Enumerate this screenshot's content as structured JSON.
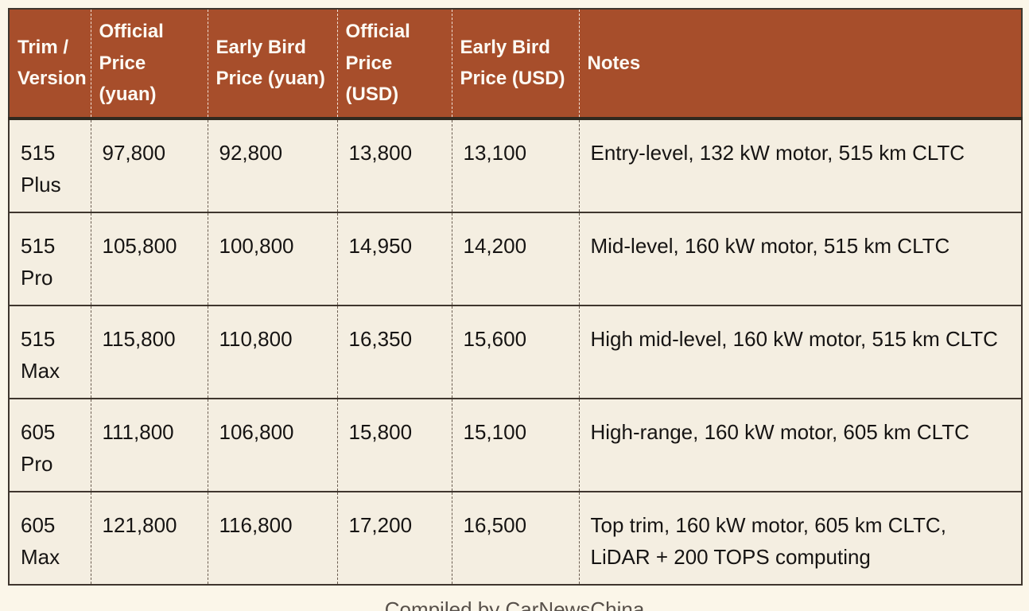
{
  "chart_data": {
    "type": "table",
    "columns": [
      "Trim / Version",
      "Official Price (yuan)",
      "Early Bird Price (yuan)",
      "Official Price (USD)",
      "Early Bird Price (USD)",
      "Notes"
    ],
    "rows": [
      {
        "trim": "515 Plus",
        "official_yuan": "97,800",
        "early_bird_yuan": "92,800",
        "official_usd": "13,800",
        "early_bird_usd": "13,100",
        "notes": "Entry-level, 132 kW motor, 515 km CLTC"
      },
      {
        "trim": "515 Pro",
        "official_yuan": "105,800",
        "early_bird_yuan": "100,800",
        "official_usd": "14,950",
        "early_bird_usd": "14,200",
        "notes": "Mid-level, 160 kW motor, 515 km CLTC"
      },
      {
        "trim": "515 Max",
        "official_yuan": "115,800",
        "early_bird_yuan": "110,800",
        "official_usd": "16,350",
        "early_bird_usd": "15,600",
        "notes": "High mid-level, 160 kW motor, 515 km CLTC"
      },
      {
        "trim": "605 Pro",
        "official_yuan": "111,800",
        "early_bird_yuan": "106,800",
        "official_usd": "15,800",
        "early_bird_usd": "15,100",
        "notes": "High-range, 160 kW motor, 605 km CLTC"
      },
      {
        "trim": "605 Max",
        "official_yuan": "121,800",
        "early_bird_yuan": "116,800",
        "official_usd": "17,200",
        "early_bird_usd": "16,500",
        "notes": "Top trim, 160 kW motor, 605 km CLTC, LiDAR + 200 TOPS computing"
      }
    ],
    "caption": "Compiled by CarNewsChina"
  },
  "colors": {
    "page_background": "#FBF6E9",
    "header_background": "#A74E2B",
    "header_text": "#FDFBF4",
    "cell_background": "#F4EEE1",
    "border_dark": "#3F362E",
    "caption_text": "#57504A"
  }
}
